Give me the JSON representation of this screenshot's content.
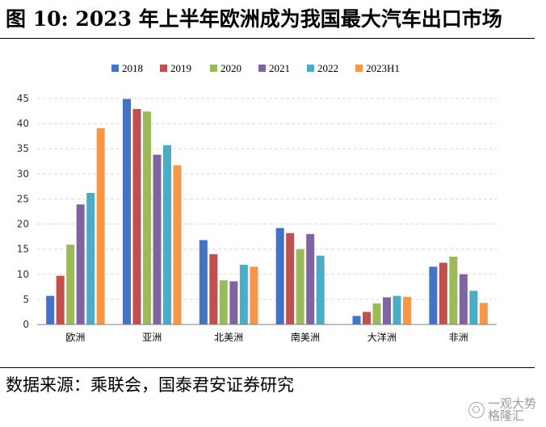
{
  "title": "图 10: 2023 年上半年欧洲成为我国最大汽车出口市场",
  "source": "数据来源：乘联会，国泰君安证券研究",
  "watermark": {
    "line1": "一观大势",
    "line2": "格隆汇"
  },
  "chart_data": {
    "type": "bar",
    "categories": [
      "欧洲",
      "亚洲",
      "北美洲",
      "南美洲",
      "大洋洲",
      "非洲"
    ],
    "series": [
      {
        "name": "2018",
        "color": "#4472C4",
        "values": [
          5.7,
          44.9,
          16.8,
          19.2,
          1.7,
          11.5
        ]
      },
      {
        "name": "2019",
        "color": "#C0504D",
        "values": [
          9.7,
          42.9,
          14.0,
          18.2,
          2.5,
          12.3
        ]
      },
      {
        "name": "2020",
        "color": "#9BBB59",
        "values": [
          15.9,
          42.4,
          8.8,
          15.0,
          4.2,
          13.5
        ]
      },
      {
        "name": "2021",
        "color": "#8064A2",
        "values": [
          23.9,
          33.8,
          8.6,
          18.0,
          5.4,
          10.0
        ]
      },
      {
        "name": "2022",
        "color": "#4BACC6",
        "values": [
          26.2,
          35.7,
          11.9,
          13.7,
          5.7,
          6.7
        ]
      },
      {
        "name": "2023H1",
        "color": "#F79646",
        "values": [
          39.1,
          31.7,
          11.5,
          0,
          5.5,
          4.3
        ]
      }
    ],
    "ylim": [
      0,
      45
    ],
    "yticks": [
      0,
      5,
      10,
      15,
      20,
      25,
      30,
      35,
      40,
      45
    ],
    "grid": true,
    "legend_position": "top-center"
  }
}
